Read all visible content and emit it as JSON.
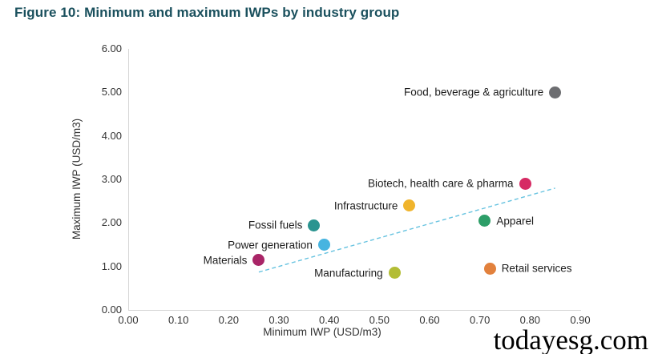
{
  "title": "Figure 10: Minimum and maximum IWPs by industry group",
  "watermark": "todayesg.com",
  "colors": {
    "title_text": "#1a505d",
    "axis_line": "#d6d6d6",
    "tick_text": "#333333",
    "label_text": "#1c1c1c",
    "trendline": "#67c3e0"
  },
  "chart_data": {
    "type": "scatter",
    "title": "Figure 10: Minimum and maximum IWPs by industry group",
    "xlabel": "Minimum IWP (USD/m3)",
    "ylabel": "Maximum IWP (USD/m3)",
    "xlim": [
      0,
      0.9
    ],
    "ylim": [
      0,
      6.0
    ],
    "x_ticks": [
      "0.00",
      "0.10",
      "0.20",
      "0.30",
      "0.40",
      "0.50",
      "0.60",
      "0.70",
      "0.80",
      "0.90"
    ],
    "y_ticks": [
      "0.00",
      "1.00",
      "2.00",
      "3.00",
      "4.00",
      "5.00",
      "6.00"
    ],
    "grid": false,
    "legend": "none",
    "points": [
      {
        "label": "Food, beverage & agriculture",
        "x": 0.85,
        "y": 5.0,
        "color": "#6d6e71",
        "label_side": "left"
      },
      {
        "label": "Biotech, health care & pharma",
        "x": 0.79,
        "y": 2.9,
        "color": "#d62a63",
        "label_side": "left"
      },
      {
        "label": "Infrastructure",
        "x": 0.56,
        "y": 2.4,
        "color": "#f0b42c",
        "label_side": "left"
      },
      {
        "label": "Apparel",
        "x": 0.71,
        "y": 2.05,
        "color": "#2d9e68",
        "label_side": "right"
      },
      {
        "label": "Fossil fuels",
        "x": 0.37,
        "y": 1.95,
        "color": "#2a9490",
        "label_side": "left"
      },
      {
        "label": "Power generation",
        "x": 0.39,
        "y": 1.5,
        "color": "#47b4e0",
        "label_side": "left"
      },
      {
        "label": "Materials",
        "x": 0.26,
        "y": 1.15,
        "color": "#a92567",
        "label_side": "left"
      },
      {
        "label": "Manufacturing",
        "x": 0.53,
        "y": 0.85,
        "color": "#b3bd35",
        "label_side": "left"
      },
      {
        "label": "Retail services",
        "x": 0.72,
        "y": 0.95,
        "color": "#e2813d",
        "label_side": "right"
      }
    ],
    "trendline": {
      "x1": 0.26,
      "y1": 0.87,
      "x2": 0.85,
      "y2": 2.8,
      "style": "dashed"
    }
  }
}
